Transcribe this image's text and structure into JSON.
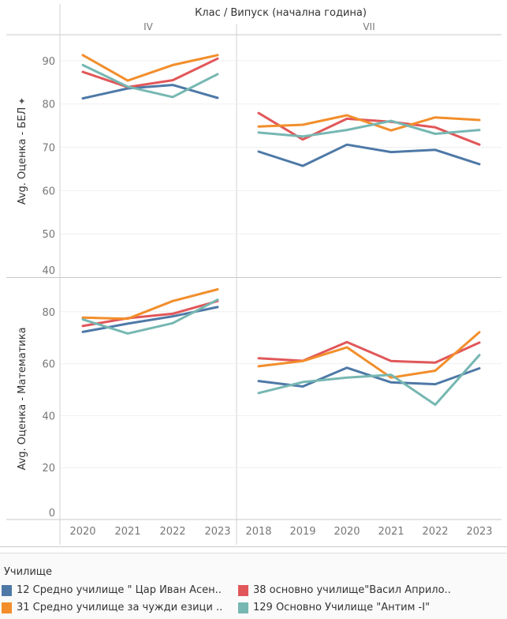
{
  "chart_data": {
    "type": "line",
    "header_title": "Клас  /  Випуск (начална година)",
    "columns": [
      {
        "label": "IV",
        "x": [
          "2020",
          "2021",
          "2022",
          "2023"
        ]
      },
      {
        "label": "VII",
        "x": [
          "2018",
          "2019",
          "2020",
          "2021",
          "2022",
          "2023"
        ]
      }
    ],
    "rows": [
      {
        "ylabel": "Avg. Оценка - БЕЛ",
        "ylim": [
          40,
          96
        ],
        "yticks": [
          40,
          50,
          60,
          70,
          80,
          90
        ],
        "pinned": true
      },
      {
        "ylabel": "Avg. Оценка - Математика",
        "ylim": [
          0,
          93
        ],
        "yticks": [
          0,
          20,
          40,
          60,
          80
        ]
      }
    ],
    "grid": true,
    "legend_title": "Училище",
    "legend_placement": "bottom",
    "series": [
      {
        "name": "12 Средно училище \" Цар Иван Асен..",
        "color": "#4e79a7",
        "values": [
          [
            [
              81.3,
              83.6,
              84.4,
              81.4
            ],
            [
              69.0,
              65.7,
              70.6,
              68.9,
              69.4,
              66.1
            ]
          ],
          [
            [
              72.2,
              75.4,
              78.2,
              81.8
            ],
            [
              53.3,
              51.2,
              58.4,
              52.8,
              52.1,
              58.2
            ]
          ]
        ]
      },
      {
        "name": "38 основно училище\"Васил Априло..",
        "color": "#e15759",
        "values": [
          [
            [
              87.4,
              83.9,
              85.5,
              90.5
            ],
            [
              77.9,
              71.8,
              76.6,
              75.9,
              74.6,
              70.6
            ]
          ],
          [
            [
              74.5,
              77.5,
              79.2,
              84.1
            ],
            [
              62.1,
              61.1,
              68.3,
              61.0,
              60.4,
              68.1
            ]
          ]
        ]
      },
      {
        "name": "31 Средно училище за чужди езици ..",
        "color": "#f28e2b",
        "values": [
          [
            [
              91.3,
              85.4,
              89.0,
              91.3
            ],
            [
              74.8,
              75.2,
              77.4,
              73.9,
              76.9,
              76.3
            ]
          ],
          [
            [
              77.7,
              77.3,
              84.1,
              88.6
            ],
            [
              59.0,
              61.0,
              66.3,
              54.6,
              57.3,
              72.1
            ]
          ]
        ]
      },
      {
        "name": "129 Основно Училище \"Антим -I\"",
        "color": "#76b7b2",
        "values": [
          [
            [
              89.0,
              84.0,
              81.6,
              86.9
            ],
            [
              73.4,
              72.5,
              74.0,
              76.1,
              73.1,
              74.0
            ]
          ],
          [
            [
              77.0,
              71.6,
              75.6,
              84.6
            ],
            [
              48.7,
              52.9,
              54.6,
              55.7,
              44.2,
              63.3
            ]
          ]
        ]
      }
    ]
  }
}
